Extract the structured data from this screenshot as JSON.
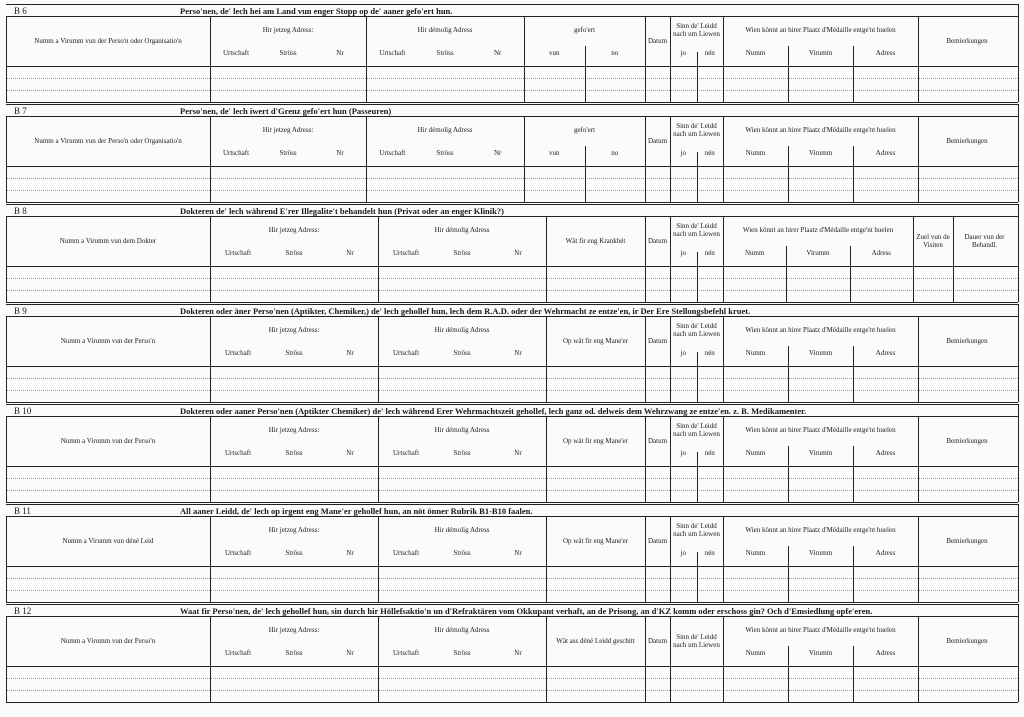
{
  "sections": [
    {
      "code": "B 6",
      "title": "Perso'nen, de' lech hei am Land vun enger Stopp op de' aaner gefo'ert hun.",
      "columns": [
        {
          "label": "Numm a Virumm vun der Perso'n oder Organisatio'n"
        },
        {
          "label": "Hir jetzeg Adress:",
          "subs": [
            "Urtschaft",
            "Ströss",
            "Nr"
          ]
        },
        {
          "label": "Hir démolig Adress",
          "subs": [
            "Urtschaft",
            "Ströss",
            "Nr"
          ]
        },
        {
          "label": "gefo'ert",
          "subs": [
            "vun",
            "no"
          ]
        },
        {
          "label": "Datum"
        },
        {
          "label": "Sinn de' Leidd nach um Liewen",
          "subs": [
            "jo",
            "nén"
          ]
        },
        {
          "label": "Wien könnt an hirer Plaatz d'Médaille entge'nt huelen",
          "subs": [
            "Numm",
            "Virumm",
            "Adress"
          ]
        },
        {
          "label": "Bemierkungen"
        }
      ]
    },
    {
      "code": "B 7",
      "title": "Perso'nen, de' lech iwert d'Grenz gefo'ert hun (Passeuren)",
      "columns": [
        {
          "label": "Numm a Virumm vun der Perso'n oder Organisatio'n"
        },
        {
          "label": "Hir jetzeg Adress:",
          "subs": [
            "Urtschaft",
            "Ströss",
            "Nr"
          ]
        },
        {
          "label": "Hir démolig Adress",
          "subs": [
            "Urtschaft",
            "Ströss",
            "Nr"
          ]
        },
        {
          "label": "gefo'ert",
          "subs": [
            "vun",
            "no"
          ]
        },
        {
          "label": "Datum"
        },
        {
          "label": "Sinn de' Leidd nach um Liewen",
          "subs": [
            "jo",
            "nén"
          ]
        },
        {
          "label": "Wien könnt an hirer Plaatz d'Médaille entge'nt huelen",
          "subs": [
            "Numm",
            "Virumm",
            "Adress"
          ]
        },
        {
          "label": "Bemierkungen"
        }
      ]
    },
    {
      "code": "B 8",
      "title": "Dokteren de' lech während E'rer Illegalite't behandelt hun (Privat oder an enger Klinik?)",
      "columns": [
        {
          "label": "Numm a Virumm vun dem Dokter"
        },
        {
          "label": "Hir jetzeg Adress:",
          "subs": [
            "Urtschaft",
            "Ströss",
            "Nr"
          ]
        },
        {
          "label": "Hir démolig Adress",
          "subs": [
            "Urtschaft",
            "Ströss",
            "Nr"
          ]
        },
        {
          "label": "Wät fir eng Krankhét"
        },
        {
          "label": "Datum"
        },
        {
          "label": "Sinn de' Leidd nach um Liewen",
          "subs": [
            "jo",
            "nén"
          ]
        },
        {
          "label": "Wien könnt an hirer Plaatz d'Médaille entge'nt huelen",
          "subs": [
            "Numm",
            "Virumm",
            "Adress"
          ]
        },
        {
          "label": "Zuel vun de Visiten"
        },
        {
          "label": "Dauer vun der Behandl."
        }
      ]
    },
    {
      "code": "B 9",
      "title": "Dokteren oder äner Perso'nen (Aptikter, Chemiker,) de' lech gehollef hun, lech dem R.A.D. oder der Wehrmacht ze entze'en, ir Der Ere Stellongsbefehl kruet.",
      "columns": [
        {
          "label": "Numm a Virumm vun der Perso'n"
        },
        {
          "label": "Hir jetzeg Adress:",
          "subs": [
            "Urtschaft",
            "Ströss",
            "Nr"
          ]
        },
        {
          "label": "Hir démolig Adress",
          "subs": [
            "Urtschaft",
            "Ströss",
            "Nr"
          ]
        },
        {
          "label": "Op wät fir eng Mane'er"
        },
        {
          "label": "Datum"
        },
        {
          "label": "Sinn de' Leidd nach um Liewen",
          "subs": [
            "jo",
            "nén"
          ]
        },
        {
          "label": "Wien könnt an hirer Plaatz d'Médaille entge'nt huelen",
          "subs": [
            "Numm",
            "Virumm",
            "Adress"
          ]
        },
        {
          "label": "Bemierkungen"
        }
      ]
    },
    {
      "code": "B 10",
      "title": "Dokteren oder aaner Perso'nen (Aptikter Chemiker) de' lech während Erer Wehrmachtszeit gehollef, lech ganz od. delweis dem Wehrzwang ze entze'en. z. B. Medikamenter.",
      "columns": [
        {
          "label": "Numm a Virumm vun der Perso'n"
        },
        {
          "label": "Hir jetzeg Adress:",
          "subs": [
            "Urtschaft",
            "Ströss",
            "Nr"
          ]
        },
        {
          "label": "Hir démolig Adress",
          "subs": [
            "Urtschaft",
            "Ströss",
            "Nr"
          ]
        },
        {
          "label": "Op wät fir eng Mane'er"
        },
        {
          "label": "Datum"
        },
        {
          "label": "Sinn de' Leidd nach um Liewen",
          "subs": [
            "jo",
            "nén"
          ]
        },
        {
          "label": "Wien könnt an hirer Plaatz d'Médaille entge'nt huelen",
          "subs": [
            "Numm",
            "Virumm",
            "Adress"
          ]
        },
        {
          "label": "Bemierkungen"
        }
      ]
    },
    {
      "code": "B 11",
      "title": "All aaner Leidd, de' lech op irgent eng Mane'er gehollef hun, an nöt önner Rubrik B1-B10 faalen.",
      "columns": [
        {
          "label": "Numm a Virumm vun déné Leid"
        },
        {
          "label": "Hir jetzeg Adress:",
          "subs": [
            "Urtschaft",
            "Ströss",
            "Nr"
          ]
        },
        {
          "label": "Hir démolig Adress",
          "subs": [
            "Urtschaft",
            "Ströss",
            "Nr"
          ]
        },
        {
          "label": "Op wät fir eng Mane'er"
        },
        {
          "label": "Datum"
        },
        {
          "label": "Sinn de' Leidd nach um Liewen",
          "subs": [
            "jo",
            "nén"
          ]
        },
        {
          "label": "Wien könnt an hirer Plaatz d'Médaille entge'nt huelen",
          "subs": [
            "Numm",
            "Virumm",
            "Adress"
          ]
        },
        {
          "label": "Bemierkungen"
        }
      ]
    },
    {
      "code": "B 12",
      "title": "Waat fir Perso'nen, de' lech gehollef hun, sin durch hir Höllefsaktio'n un d'Refraktären vom Okkupant verhaft, an de Prisong, an d'KZ komm oder erschoss gin? Och d'Emsiedlung opfe'eren.",
      "columns": [
        {
          "label": "Numm a Virumm vun der Perso'n"
        },
        {
          "label": "Hir jetzeg Adress:",
          "subs": [
            "Urtschaft",
            "Ströss",
            "Nr"
          ]
        },
        {
          "label": "Hir démolig Adress",
          "subs": [
            "Urtschaft",
            "Ströss",
            "Nr"
          ]
        },
        {
          "label": "Wät ass déné Leidd geschitt"
        },
        {
          "label": "Datum"
        },
        {
          "label": "Sinn de' Leidd nach um Liewen"
        },
        {
          "label": "Wien könnt an hirer Plaatz d'Médaille entge'nt huelen",
          "subs": [
            "Numm",
            "Virumm",
            "Adress"
          ]
        },
        {
          "label": "Bemierkungen"
        }
      ]
    }
  ]
}
